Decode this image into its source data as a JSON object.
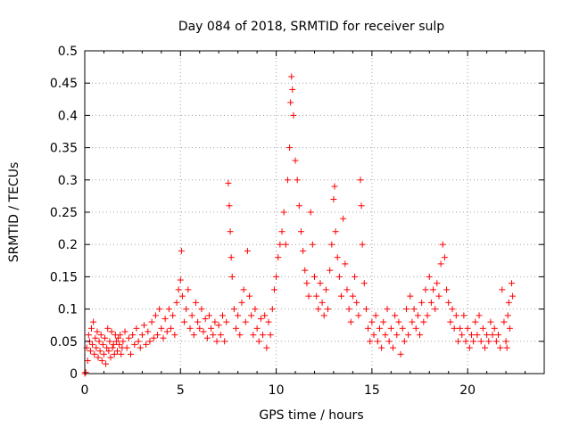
{
  "chart_data": {
    "type": "scatter",
    "title": "Day 084 of 2018, SRMTID for receiver sulp",
    "xlabel": "GPS time / hours",
    "ylabel": "SRMTID / TECUs",
    "xlim": [
      0,
      24
    ],
    "ylim": [
      0,
      0.5
    ],
    "grid": true,
    "marker": "+",
    "colors": {
      "points": "#ff0000",
      "axes": "#000000",
      "grid": "#a0a0a0",
      "background": "#ffffff"
    },
    "x_ticks": [
      {
        "value": 0,
        "label": "0"
      },
      {
        "value": 5,
        "label": "5"
      },
      {
        "value": 10,
        "label": "10"
      },
      {
        "value": 15,
        "label": "15"
      },
      {
        "value": 20,
        "label": "20"
      }
    ],
    "y_ticks": [
      {
        "value": 0,
        "label": "0"
      },
      {
        "value": 0.05,
        "label": "0.05"
      },
      {
        "value": 0.1,
        "label": "0.1"
      },
      {
        "value": 0.15,
        "label": "0.15"
      },
      {
        "value": 0.2,
        "label": "0.2"
      },
      {
        "value": 0.25,
        "label": "0.25"
      },
      {
        "value": 0.3,
        "label": "0.3"
      },
      {
        "value": 0.35,
        "label": "0.35"
      },
      {
        "value": 0.4,
        "label": "0.4"
      },
      {
        "value": 0.45,
        "label": "0.45"
      },
      {
        "value": 0.5,
        "label": "0.5"
      }
    ],
    "points": [
      [
        0.0,
        0.0
      ],
      [
        0.05,
        0.002
      ],
      [
        0.1,
        0.04
      ],
      [
        0.15,
        0.02
      ],
      [
        0.2,
        0.06
      ],
      [
        0.25,
        0.05
      ],
      [
        0.3,
        0.035
      ],
      [
        0.35,
        0.07
      ],
      [
        0.4,
        0.045
      ],
      [
        0.45,
        0.08
      ],
      [
        0.5,
        0.03
      ],
      [
        0.55,
        0.055
      ],
      [
        0.6,
        0.04
      ],
      [
        0.65,
        0.065
      ],
      [
        0.7,
        0.025
      ],
      [
        0.75,
        0.05
      ],
      [
        0.8,
        0.035
      ],
      [
        0.85,
        0.06
      ],
      [
        0.9,
        0.02
      ],
      [
        0.95,
        0.045
      ],
      [
        1.0,
        0.03
      ],
      [
        1.05,
        0.055
      ],
      [
        1.1,
        0.015
      ],
      [
        1.15,
        0.04
      ],
      [
        1.2,
        0.07
      ],
      [
        1.25,
        0.035
      ],
      [
        1.3,
        0.05
      ],
      [
        1.35,
        0.025
      ],
      [
        1.4,
        0.065
      ],
      [
        1.45,
        0.04
      ],
      [
        1.5,
        0.045
      ],
      [
        1.55,
        0.03
      ],
      [
        1.6,
        0.06
      ],
      [
        1.65,
        0.05
      ],
      [
        1.7,
        0.035
      ],
      [
        1.75,
        0.055
      ],
      [
        1.8,
        0.045
      ],
      [
        1.85,
        0.06
      ],
      [
        1.9,
        0.03
      ],
      [
        1.95,
        0.04
      ],
      [
        2.0,
        0.05
      ],
      [
        2.1,
        0.065
      ],
      [
        2.2,
        0.04
      ],
      [
        2.3,
        0.055
      ],
      [
        2.4,
        0.03
      ],
      [
        2.5,
        0.06
      ],
      [
        2.6,
        0.045
      ],
      [
        2.7,
        0.07
      ],
      [
        2.8,
        0.05
      ],
      [
        2.9,
        0.04
      ],
      [
        3.0,
        0.06
      ],
      [
        3.1,
        0.075
      ],
      [
        3.2,
        0.045
      ],
      [
        3.3,
        0.065
      ],
      [
        3.4,
        0.05
      ],
      [
        3.5,
        0.08
      ],
      [
        3.6,
        0.055
      ],
      [
        3.7,
        0.09
      ],
      [
        3.8,
        0.06
      ],
      [
        3.9,
        0.1
      ],
      [
        4.0,
        0.07
      ],
      [
        4.1,
        0.055
      ],
      [
        4.2,
        0.085
      ],
      [
        4.3,
        0.065
      ],
      [
        4.4,
        0.1
      ],
      [
        4.5,
        0.07
      ],
      [
        4.6,
        0.09
      ],
      [
        4.7,
        0.06
      ],
      [
        4.8,
        0.11
      ],
      [
        4.9,
        0.13
      ],
      [
        5.0,
        0.145
      ],
      [
        5.05,
        0.19
      ],
      [
        5.1,
        0.12
      ],
      [
        5.2,
        0.08
      ],
      [
        5.3,
        0.1
      ],
      [
        5.4,
        0.13
      ],
      [
        5.5,
        0.07
      ],
      [
        5.6,
        0.09
      ],
      [
        5.7,
        0.06
      ],
      [
        5.8,
        0.11
      ],
      [
        5.9,
        0.08
      ],
      [
        6.0,
        0.07
      ],
      [
        6.1,
        0.1
      ],
      [
        6.2,
        0.065
      ],
      [
        6.3,
        0.085
      ],
      [
        6.4,
        0.055
      ],
      [
        6.5,
        0.09
      ],
      [
        6.6,
        0.07
      ],
      [
        6.7,
        0.06
      ],
      [
        6.8,
        0.08
      ],
      [
        6.9,
        0.05
      ],
      [
        7.0,
        0.075
      ],
      [
        7.1,
        0.06
      ],
      [
        7.2,
        0.09
      ],
      [
        7.3,
        0.05
      ],
      [
        7.4,
        0.08
      ],
      [
        7.5,
        0.295
      ],
      [
        7.55,
        0.26
      ],
      [
        7.6,
        0.22
      ],
      [
        7.65,
        0.18
      ],
      [
        7.7,
        0.15
      ],
      [
        7.8,
        0.1
      ],
      [
        7.9,
        0.07
      ],
      [
        8.0,
        0.09
      ],
      [
        8.1,
        0.06
      ],
      [
        8.2,
        0.11
      ],
      [
        8.3,
        0.13
      ],
      [
        8.4,
        0.08
      ],
      [
        8.5,
        0.19
      ],
      [
        8.6,
        0.12
      ],
      [
        8.7,
        0.09
      ],
      [
        8.8,
        0.06
      ],
      [
        8.9,
        0.1
      ],
      [
        9.0,
        0.07
      ],
      [
        9.1,
        0.05
      ],
      [
        9.2,
        0.085
      ],
      [
        9.3,
        0.06
      ],
      [
        9.4,
        0.09
      ],
      [
        9.5,
        0.04
      ],
      [
        9.6,
        0.08
      ],
      [
        9.7,
        0.06
      ],
      [
        9.8,
        0.1
      ],
      [
        9.9,
        0.13
      ],
      [
        10.0,
        0.15
      ],
      [
        10.1,
        0.18
      ],
      [
        10.2,
        0.2
      ],
      [
        10.3,
        0.22
      ],
      [
        10.4,
        0.25
      ],
      [
        10.5,
        0.2
      ],
      [
        10.6,
        0.3
      ],
      [
        10.7,
        0.35
      ],
      [
        10.75,
        0.42
      ],
      [
        10.8,
        0.46
      ],
      [
        10.85,
        0.44
      ],
      [
        10.9,
        0.4
      ],
      [
        11.0,
        0.33
      ],
      [
        11.1,
        0.3
      ],
      [
        11.2,
        0.26
      ],
      [
        11.3,
        0.22
      ],
      [
        11.4,
        0.19
      ],
      [
        11.5,
        0.16
      ],
      [
        11.6,
        0.14
      ],
      [
        11.7,
        0.12
      ],
      [
        11.8,
        0.25
      ],
      [
        11.9,
        0.2
      ],
      [
        12.0,
        0.15
      ],
      [
        12.1,
        0.12
      ],
      [
        12.2,
        0.1
      ],
      [
        12.3,
        0.14
      ],
      [
        12.4,
        0.11
      ],
      [
        12.5,
        0.09
      ],
      [
        12.6,
        0.13
      ],
      [
        12.7,
        0.1
      ],
      [
        12.8,
        0.16
      ],
      [
        12.9,
        0.2
      ],
      [
        13.0,
        0.27
      ],
      [
        13.05,
        0.29
      ],
      [
        13.1,
        0.22
      ],
      [
        13.2,
        0.18
      ],
      [
        13.3,
        0.15
      ],
      [
        13.4,
        0.12
      ],
      [
        13.5,
        0.24
      ],
      [
        13.6,
        0.17
      ],
      [
        13.7,
        0.13
      ],
      [
        13.8,
        0.1
      ],
      [
        13.9,
        0.08
      ],
      [
        14.0,
        0.12
      ],
      [
        14.1,
        0.15
      ],
      [
        14.2,
        0.11
      ],
      [
        14.3,
        0.09
      ],
      [
        14.4,
        0.3
      ],
      [
        14.45,
        0.26
      ],
      [
        14.5,
        0.2
      ],
      [
        14.6,
        0.14
      ],
      [
        14.7,
        0.1
      ],
      [
        14.8,
        0.07
      ],
      [
        14.9,
        0.05
      ],
      [
        15.0,
        0.08
      ],
      [
        15.1,
        0.06
      ],
      [
        15.2,
        0.09
      ],
      [
        15.3,
        0.05
      ],
      [
        15.4,
        0.07
      ],
      [
        15.5,
        0.04
      ],
      [
        15.6,
        0.08
      ],
      [
        15.7,
        0.06
      ],
      [
        15.8,
        0.1
      ],
      [
        15.9,
        0.05
      ],
      [
        16.0,
        0.07
      ],
      [
        16.1,
        0.04
      ],
      [
        16.2,
        0.09
      ],
      [
        16.3,
        0.06
      ],
      [
        16.4,
        0.08
      ],
      [
        16.5,
        0.03
      ],
      [
        16.6,
        0.07
      ],
      [
        16.7,
        0.05
      ],
      [
        16.8,
        0.1
      ],
      [
        16.9,
        0.06
      ],
      [
        17.0,
        0.12
      ],
      [
        17.1,
        0.08
      ],
      [
        17.2,
        0.1
      ],
      [
        17.3,
        0.07
      ],
      [
        17.4,
        0.09
      ],
      [
        17.5,
        0.06
      ],
      [
        17.6,
        0.11
      ],
      [
        17.7,
        0.08
      ],
      [
        17.8,
        0.13
      ],
      [
        17.9,
        0.09
      ],
      [
        18.0,
        0.15
      ],
      [
        18.1,
        0.11
      ],
      [
        18.2,
        0.13
      ],
      [
        18.3,
        0.1
      ],
      [
        18.4,
        0.14
      ],
      [
        18.5,
        0.12
      ],
      [
        18.6,
        0.17
      ],
      [
        18.7,
        0.2
      ],
      [
        18.8,
        0.18
      ],
      [
        18.9,
        0.13
      ],
      [
        19.0,
        0.11
      ],
      [
        19.1,
        0.08
      ],
      [
        19.2,
        0.1
      ],
      [
        19.3,
        0.07
      ],
      [
        19.4,
        0.09
      ],
      [
        19.5,
        0.05
      ],
      [
        19.6,
        0.07
      ],
      [
        19.7,
        0.06
      ],
      [
        19.8,
        0.09
      ],
      [
        19.9,
        0.05
      ],
      [
        20.0,
        0.07
      ],
      [
        20.1,
        0.04
      ],
      [
        20.2,
        0.06
      ],
      [
        20.3,
        0.05
      ],
      [
        20.4,
        0.08
      ],
      [
        20.5,
        0.06
      ],
      [
        20.6,
        0.09
      ],
      [
        20.7,
        0.05
      ],
      [
        20.8,
        0.07
      ],
      [
        20.9,
        0.04
      ],
      [
        21.0,
        0.06
      ],
      [
        21.1,
        0.05
      ],
      [
        21.2,
        0.08
      ],
      [
        21.3,
        0.06
      ],
      [
        21.4,
        0.07
      ],
      [
        21.5,
        0.05
      ],
      [
        21.6,
        0.06
      ],
      [
        21.7,
        0.04
      ],
      [
        21.8,
        0.13
      ],
      [
        21.9,
        0.08
      ],
      [
        22.0,
        0.05
      ],
      [
        22.05,
        0.04
      ],
      [
        22.1,
        0.09
      ],
      [
        22.15,
        0.11
      ],
      [
        22.2,
        0.07
      ],
      [
        22.3,
        0.14
      ],
      [
        22.35,
        0.12
      ]
    ]
  }
}
